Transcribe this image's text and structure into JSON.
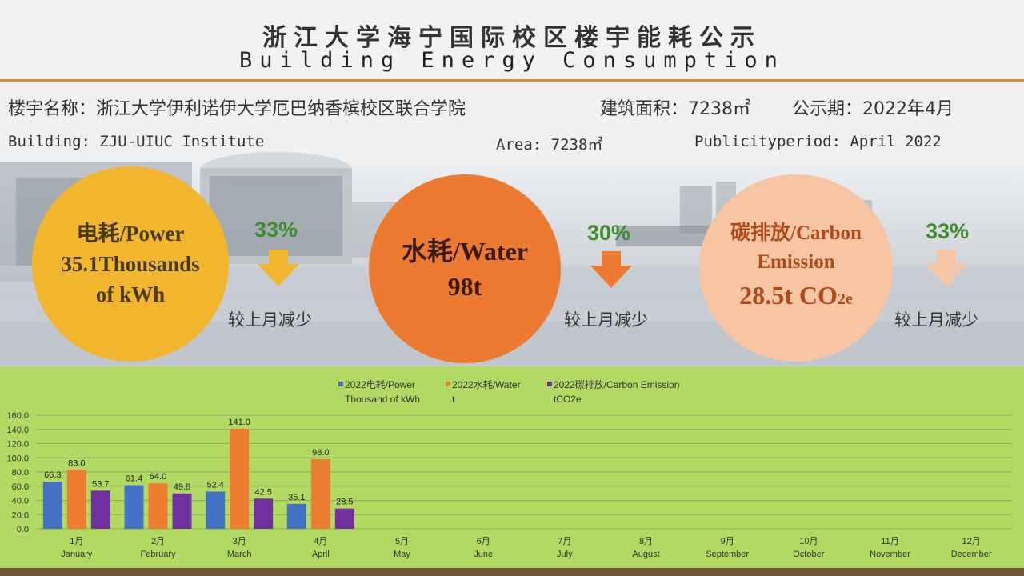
{
  "header": {
    "title_zh": "浙江大学海宁国际校区楼宇能耗公示",
    "title_en": "Building Energy Consumption"
  },
  "info": {
    "building_zh": "楼宇名称：浙江大学伊利诺伊大学厄巴纳香槟校区联合学院",
    "area_zh": "建筑面积：7238㎡",
    "period_zh": "公示期：2022年4月",
    "building_en": "Building: ZJU-UIUC Institute",
    "area_en": "Area: 7238㎡",
    "period_en": "Publicityperiod: April 2022"
  },
  "kpis": {
    "power": {
      "line1": "电耗/Power",
      "line2": "35.1Thousands",
      "line3": "of kWh",
      "change": "33%",
      "note": "较上月减少",
      "color": "#f2b62e"
    },
    "water": {
      "line1": "水耗/Water",
      "line2": "98t",
      "change": "30%",
      "note": "较上月减少",
      "color": "#ec7a30"
    },
    "carbon": {
      "line1": "碳排放/Carbon",
      "line2": "Emission",
      "line3": "28.5t CO",
      "sub": "2e",
      "change": "33%",
      "note": "较上月减少",
      "color": "#f7c5a4"
    }
  },
  "chart_data": {
    "type": "bar",
    "categories_zh": [
      "1月",
      "2月",
      "3月",
      "4月",
      "5月",
      "6月",
      "7月",
      "8月",
      "9月",
      "10月",
      "11月",
      "12月"
    ],
    "categories_en": [
      "January",
      "February",
      "March",
      "April",
      "May",
      "June",
      "July",
      "August",
      "September",
      "October",
      "November",
      "December"
    ],
    "series": [
      {
        "name": "2022电耗/Power Thousand of kWh",
        "legend_lines": [
          "2022电耗/Power",
          "Thousand of kWh"
        ],
        "color": "#4472c4",
        "values": [
          66.3,
          61.4,
          52.4,
          35.1,
          null,
          null,
          null,
          null,
          null,
          null,
          null,
          null
        ]
      },
      {
        "name": "2022水耗/Water t",
        "legend_lines": [
          "2022水耗/Water",
          "t"
        ],
        "color": "#ed7d31",
        "values": [
          83.0,
          64.0,
          141.0,
          98.0,
          null,
          null,
          null,
          null,
          null,
          null,
          null,
          null
        ]
      },
      {
        "name": "2022碳排放/Carbon Emission tCO2e",
        "legend_lines": [
          "2022碳排放/Carbon  Emission",
          "tCO2e"
        ],
        "color": "#7030a0",
        "values": [
          53.7,
          49.8,
          42.5,
          28.5,
          null,
          null,
          null,
          null,
          null,
          null,
          null,
          null
        ]
      }
    ],
    "ylim": [
      0,
      160
    ],
    "yticks": [
      "0.0",
      "20.0",
      "40.0",
      "60.0",
      "80.0",
      "100.0",
      "120.0",
      "140.0",
      "160.0"
    ],
    "grid": true,
    "legend_position": "top"
  }
}
